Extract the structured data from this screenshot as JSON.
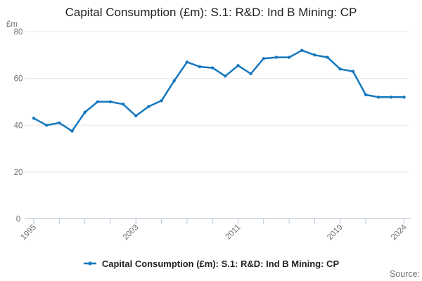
{
  "title": "Capital Consumption (£m): S.1: R&D: Ind B Mining: CP",
  "legend": {
    "label": "Capital Consumption (£m): S.1: R&D: Ind B Mining: CP"
  },
  "source_label": "Source:",
  "colors": {
    "line": "#1577be",
    "grid": "#e6e6e6",
    "axis": "#b3c1d4",
    "tick_text": "#6f6f6f",
    "title_text": "#222222"
  },
  "chart_data": {
    "type": "line",
    "title": "Capital Consumption (£m): S.1: R&D: Ind B Mining: CP",
    "unit_label": "£m",
    "xlabel": "",
    "ylabel": "£m",
    "ylim": [
      0,
      80
    ],
    "y_ticks": [
      0,
      20,
      40,
      60,
      80
    ],
    "x_tick_years": [
      1995,
      1997,
      1999,
      2001,
      2003,
      2005,
      2007,
      2009,
      2011,
      2013,
      2015,
      2017,
      2019,
      2021,
      2024
    ],
    "x_labeled_years": [
      1995,
      2003,
      2011,
      2019,
      2024
    ],
    "grid": "horizontal",
    "legend_position": "bottom",
    "x": [
      1995,
      1996,
      1997,
      1998,
      1999,
      2000,
      2001,
      2002,
      2003,
      2004,
      2005,
      2006,
      2007,
      2008,
      2009,
      2010,
      2011,
      2012,
      2013,
      2014,
      2015,
      2016,
      2017,
      2018,
      2019,
      2020,
      2021,
      2022,
      2023,
      2024
    ],
    "series": [
      {
        "name": "Capital Consumption (£m): S.1: R&D: Ind B Mining: CP",
        "values": [
          43,
          40,
          41,
          37.5,
          45.5,
          50,
          50,
          49,
          44,
          48,
          50.5,
          59,
          67,
          65,
          64.5,
          61,
          65.5,
          62,
          68.5,
          69,
          69,
          72,
          70,
          69,
          64,
          63,
          53,
          52,
          52,
          52
        ]
      }
    ]
  }
}
